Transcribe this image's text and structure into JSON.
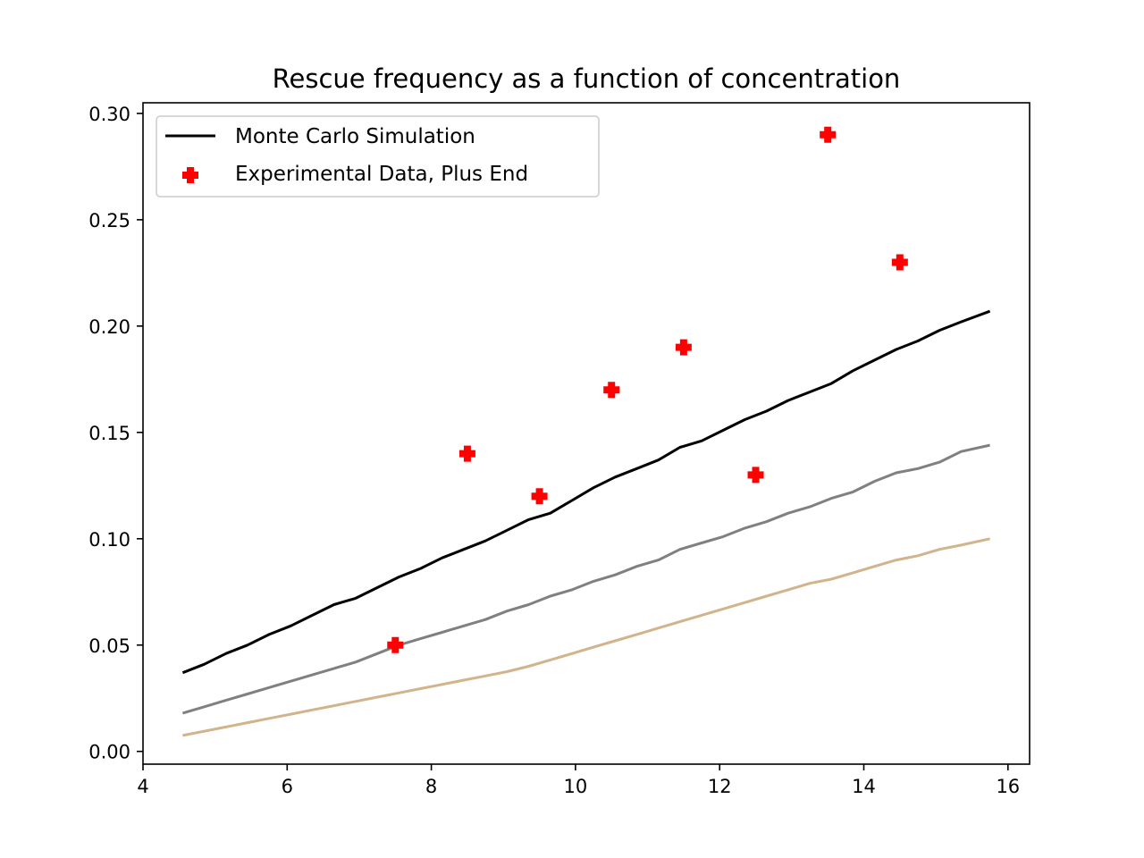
{
  "chart_data": {
    "type": "line",
    "title": "Rescue frequency as a function of concentration",
    "xlabel": "",
    "ylabel": "",
    "xlim": [
      4,
      16.3
    ],
    "ylim": [
      -0.006,
      0.305
    ],
    "xticks": [
      4,
      6,
      8,
      10,
      12,
      14,
      16
    ],
    "yticks": [
      0.0,
      0.05,
      0.1,
      0.15,
      0.2,
      0.25,
      0.3
    ],
    "xtick_labels": [
      "4",
      "6",
      "8",
      "10",
      "12",
      "14",
      "16"
    ],
    "ytick_labels": [
      "0.00",
      "0.05",
      "0.10",
      "0.15",
      "0.20",
      "0.25",
      "0.30"
    ],
    "grid": false,
    "legend_position": "upper-left",
    "series": [
      {
        "name": "Monte Carlo Simulation",
        "kind": "line",
        "color": "#000000",
        "x": [
          4.55,
          4.85,
          5.15,
          5.45,
          5.75,
          6.05,
          6.35,
          6.65,
          6.95,
          7.25,
          7.55,
          7.85,
          8.15,
          8.45,
          8.75,
          9.05,
          9.35,
          9.65,
          9.95,
          10.25,
          10.55,
          10.85,
          11.15,
          11.45,
          11.75,
          12.05,
          12.35,
          12.65,
          12.95,
          13.25,
          13.55,
          13.85,
          14.15,
          14.45,
          14.75,
          15.05,
          15.35,
          15.75
        ],
        "y": [
          0.037,
          0.041,
          0.046,
          0.05,
          0.055,
          0.059,
          0.064,
          0.069,
          0.072,
          0.077,
          0.082,
          0.086,
          0.091,
          0.095,
          0.099,
          0.104,
          0.109,
          0.112,
          0.118,
          0.124,
          0.129,
          0.133,
          0.137,
          0.143,
          0.146,
          0.151,
          0.156,
          0.16,
          0.165,
          0.169,
          0.173,
          0.179,
          0.184,
          0.189,
          0.193,
          0.198,
          0.202,
          0.207
        ]
      },
      {
        "name": "",
        "kind": "line",
        "color": "#808080",
        "x": [
          4.55,
          4.85,
          5.15,
          5.45,
          5.75,
          6.05,
          6.35,
          6.65,
          6.95,
          7.25,
          7.55,
          7.85,
          8.15,
          8.45,
          8.75,
          9.05,
          9.35,
          9.65,
          9.95,
          10.25,
          10.55,
          10.85,
          11.15,
          11.45,
          11.75,
          12.05,
          12.35,
          12.65,
          12.95,
          13.25,
          13.55,
          13.85,
          14.15,
          14.45,
          14.75,
          15.05,
          15.35,
          15.75
        ],
        "y": [
          0.018,
          0.021,
          0.024,
          0.027,
          0.03,
          0.033,
          0.036,
          0.039,
          0.042,
          0.046,
          0.05,
          0.053,
          0.056,
          0.059,
          0.062,
          0.066,
          0.069,
          0.073,
          0.076,
          0.08,
          0.083,
          0.087,
          0.09,
          0.095,
          0.098,
          0.101,
          0.105,
          0.108,
          0.112,
          0.115,
          0.119,
          0.122,
          0.127,
          0.131,
          0.133,
          0.136,
          0.141,
          0.144
        ]
      },
      {
        "name": "",
        "kind": "line",
        "color": "#d2b48c",
        "x": [
          4.55,
          4.85,
          5.15,
          5.45,
          5.75,
          6.05,
          6.35,
          6.65,
          6.95,
          7.25,
          7.55,
          7.85,
          8.15,
          8.45,
          8.75,
          9.05,
          9.35,
          9.65,
          9.95,
          10.25,
          10.55,
          10.85,
          11.15,
          11.45,
          11.75,
          12.05,
          12.35,
          12.65,
          12.95,
          13.25,
          13.55,
          13.85,
          14.15,
          14.45,
          14.75,
          15.05,
          15.35,
          15.75
        ],
        "y": [
          0.0075,
          0.0095,
          0.0115,
          0.0135,
          0.0155,
          0.0175,
          0.0195,
          0.0215,
          0.0235,
          0.0255,
          0.0275,
          0.0295,
          0.0315,
          0.0335,
          0.0355,
          0.0375,
          0.04,
          0.043,
          0.046,
          0.049,
          0.052,
          0.055,
          0.058,
          0.061,
          0.064,
          0.067,
          0.07,
          0.073,
          0.076,
          0.079,
          0.081,
          0.084,
          0.087,
          0.09,
          0.092,
          0.095,
          0.097,
          0.1
        ]
      },
      {
        "name": "Experimental Data, Plus End",
        "kind": "scatter",
        "marker": "plus-filled",
        "color": "#ff0000",
        "x": [
          7.5,
          8.5,
          9.5,
          10.5,
          11.5,
          12.5,
          13.5,
          14.5
        ],
        "y": [
          0.05,
          0.14,
          0.12,
          0.17,
          0.19,
          0.13,
          0.29,
          0.23
        ]
      }
    ]
  }
}
